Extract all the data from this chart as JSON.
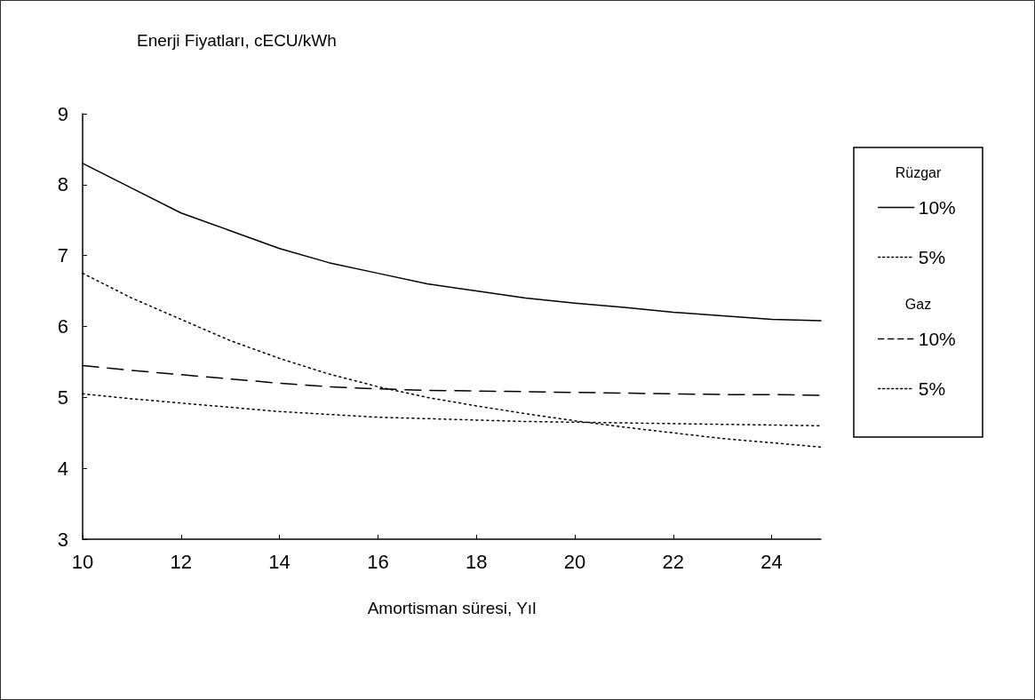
{
  "chart_data": {
    "type": "line",
    "title": "Enerji Fiyatları, cECU/kWh",
    "xlabel": "Amortisman süresi, Yıl",
    "annotations": [
      "Rüzgar",
      "Gaz"
    ],
    "x": [
      10,
      11,
      12,
      13,
      14,
      15,
      16,
      17,
      18,
      19,
      20,
      21,
      22,
      23,
      24,
      25
    ],
    "series": [
      {
        "name": "10%",
        "color": "#000000",
        "line_style": "solid",
        "values": [
          8.3,
          7.95,
          7.6,
          7.35,
          7.1,
          6.9,
          6.75,
          6.6,
          6.5,
          6.4,
          6.33,
          6.27,
          6.2,
          6.15,
          6.1,
          6.08
        ]
      },
      {
        "name": "5%",
        "color": "#000000",
        "line_style": "dotted",
        "values": [
          6.75,
          6.4,
          6.1,
          5.8,
          5.55,
          5.33,
          5.15,
          5.0,
          4.88,
          4.77,
          4.67,
          4.58,
          4.5,
          4.42,
          4.36,
          4.3
        ]
      },
      {
        "name": "10%",
        "color": "#000000",
        "line_style": "dashed",
        "values": [
          5.45,
          5.38,
          5.32,
          5.26,
          5.2,
          5.15,
          5.12,
          5.1,
          5.09,
          5.08,
          5.07,
          5.06,
          5.05,
          5.04,
          5.04,
          5.03
        ]
      },
      {
        "name": "5%",
        "color": "#000000",
        "line_style": "dotted",
        "values": [
          5.05,
          4.98,
          4.92,
          4.86,
          4.8,
          4.76,
          4.72,
          4.7,
          4.68,
          4.66,
          4.65,
          4.64,
          4.63,
          4.62,
          4.61,
          4.6
        ]
      }
    ],
    "xlim": [
      10,
      25
    ],
    "xticks": [
      10,
      12,
      14,
      16,
      18,
      20,
      22,
      24
    ],
    "ylim": [
      3,
      9
    ],
    "yticks": [
      3,
      4,
      5,
      6,
      7,
      8,
      9
    ],
    "grid": false,
    "marker": "none",
    "legend": "right"
  }
}
